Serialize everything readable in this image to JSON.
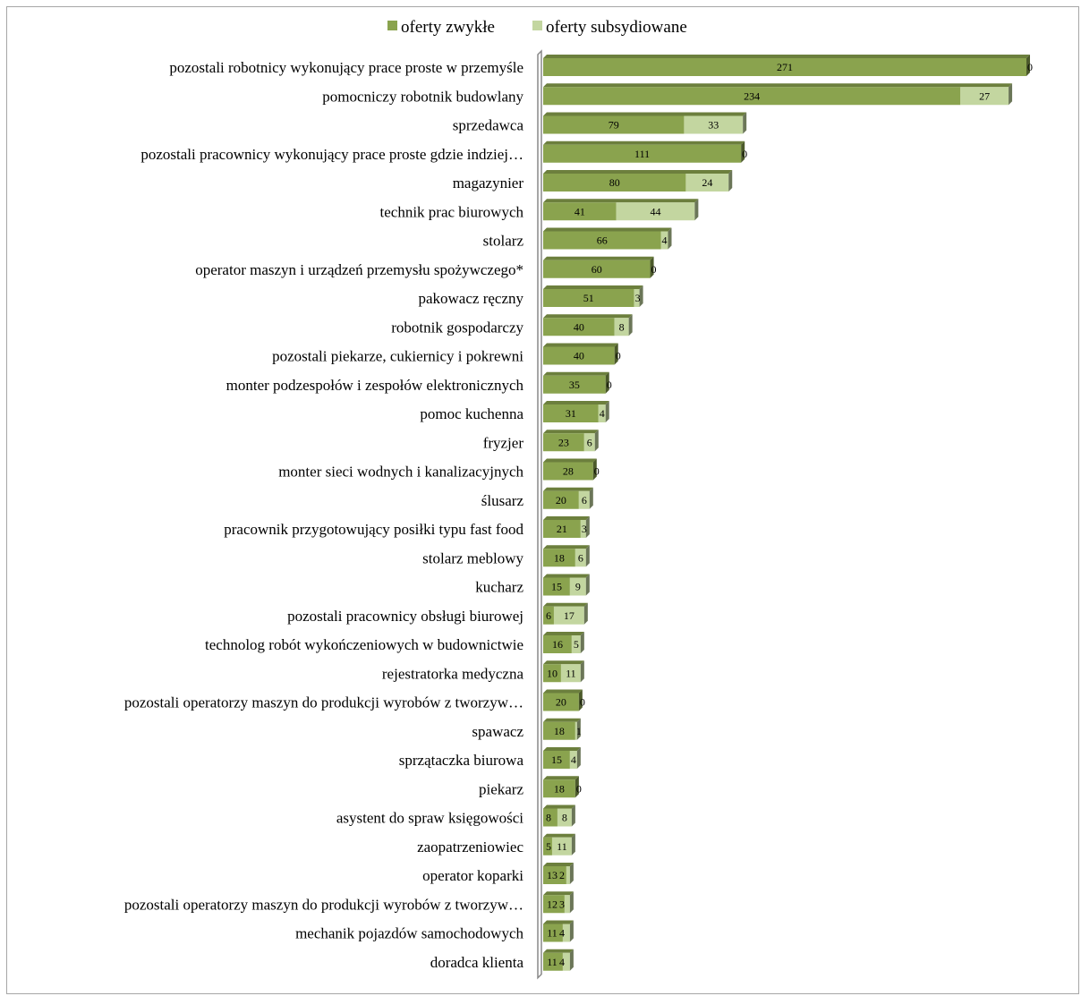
{
  "chart_data": {
    "type": "bar",
    "orientation": "horizontal",
    "stacked": true,
    "legend_position": "top",
    "colors": {
      "oferty_zwykle": "#8aa34e",
      "oferty_subsydiowane": "#c3d6a0"
    },
    "series": [
      {
        "name": "oferty zwykłe",
        "values": [
          271,
          234,
          79,
          111,
          80,
          41,
          66,
          60,
          51,
          40,
          40,
          35,
          31,
          23,
          28,
          20,
          21,
          18,
          15,
          6,
          16,
          10,
          20,
          18,
          15,
          18,
          8,
          5,
          13,
          12,
          11,
          11
        ]
      },
      {
        "name": "oferty subsydiowane",
        "values": [
          0,
          27,
          33,
          0,
          24,
          44,
          4,
          0,
          3,
          8,
          0,
          0,
          4,
          6,
          0,
          6,
          3,
          6,
          9,
          17,
          5,
          11,
          0,
          1,
          4,
          0,
          8,
          11,
          2,
          3,
          4,
          4
        ]
      }
    ],
    "categories": [
      "pozostali robotnicy wykonujący prace proste w przemyśle",
      "pomocniczy robotnik budowlany",
      "sprzedawca",
      "pozostali pracownicy wykonujący prace proste gdzie indziej…",
      "magazynier",
      "technik prac biurowych",
      "stolarz",
      "operator maszyn i urządzeń przemysłu spożywczego*",
      "pakowacz ręczny",
      "robotnik gospodarczy",
      "pozostali piekarze, cukiernicy i pokrewni",
      "monter podzespołów i zespołów elektronicznych",
      "pomoc kuchenna",
      "fryzjer",
      "monter sieci wodnych i kanalizacyjnych",
      "ślusarz",
      "pracownik przygotowujący posiłki typu fast food",
      "stolarz meblowy",
      "kucharz",
      "pozostali pracownicy obsługi biurowej",
      "technolog robót wykończeniowych w budownictwie",
      "rejestratorka medyczna",
      "pozostali operatorzy maszyn do produkcji wyrobów z tworzyw…",
      "spawacz",
      "sprzątaczka biurowa",
      "piekarz",
      "asystent do spraw księgowości",
      "zaopatrzeniowiec",
      "operator koparki",
      "pozostali operatorzy maszyn do produkcji wyrobów z tworzyw…",
      "mechanik pojazdów samochodowych",
      "doradca klienta"
    ]
  }
}
